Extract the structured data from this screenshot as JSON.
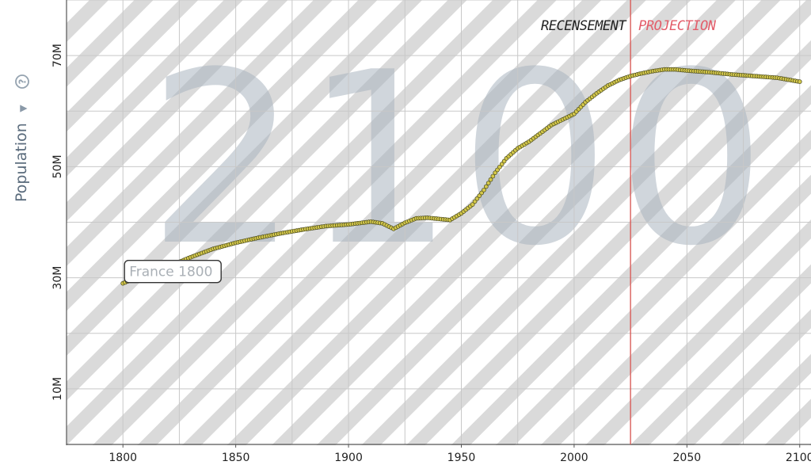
{
  "chart_data": {
    "type": "scatter",
    "background_year": "2100",
    "ylabel": "Population",
    "ylabel_arrow": "▼",
    "help_icon": "question-circle-icon",
    "xlim": [
      1775,
      2105
    ],
    "ylim": [
      0,
      80000000
    ],
    "x_ticks": [
      {
        "value": 1800,
        "label": "1800"
      },
      {
        "value": 1850,
        "label": "1850"
      },
      {
        "value": 1900,
        "label": "1900"
      },
      {
        "value": 1950,
        "label": "1950"
      },
      {
        "value": 2000,
        "label": "2000"
      },
      {
        "value": 2050,
        "label": "2050"
      },
      {
        "value": 2100,
        "label": "2100"
      }
    ],
    "y_ticks": [
      {
        "value": 10000000,
        "label": "10M"
      },
      {
        "value": 30000000,
        "label": "30M"
      },
      {
        "value": 50000000,
        "label": "50M"
      },
      {
        "value": 70000000,
        "label": "70M"
      }
    ],
    "divider_year": 2025,
    "census_label": "RECENSEMENT",
    "projection_label": "PROJECTION",
    "tooltip_label": "France 1800",
    "series": [
      {
        "name": "France",
        "color": "#d4c84a",
        "keypoints": [
          [
            1800,
            29000000
          ],
          [
            1810,
            30700000
          ],
          [
            1820,
            32000000
          ],
          [
            1830,
            33700000
          ],
          [
            1840,
            35200000
          ],
          [
            1850,
            36300000
          ],
          [
            1860,
            37200000
          ],
          [
            1870,
            38000000
          ],
          [
            1880,
            38700000
          ],
          [
            1890,
            39300000
          ],
          [
            1900,
            39600000
          ],
          [
            1910,
            40100000
          ],
          [
            1915,
            39800000
          ],
          [
            1920,
            38800000
          ],
          [
            1925,
            39900000
          ],
          [
            1930,
            40700000
          ],
          [
            1935,
            40800000
          ],
          [
            1940,
            40600000
          ],
          [
            1945,
            40400000
          ],
          [
            1950,
            41600000
          ],
          [
            1955,
            43200000
          ],
          [
            1960,
            45800000
          ],
          [
            1965,
            48900000
          ],
          [
            1970,
            51500000
          ],
          [
            1975,
            53300000
          ],
          [
            1980,
            54500000
          ],
          [
            1985,
            56000000
          ],
          [
            1990,
            57500000
          ],
          [
            1995,
            58500000
          ],
          [
            2000,
            59500000
          ],
          [
            2005,
            61600000
          ],
          [
            2010,
            63200000
          ],
          [
            2015,
            64600000
          ],
          [
            2020,
            65600000
          ],
          [
            2025,
            66300000
          ],
          [
            2030,
            66800000
          ],
          [
            2035,
            67200000
          ],
          [
            2040,
            67500000
          ],
          [
            2045,
            67500000
          ],
          [
            2050,
            67300000
          ],
          [
            2060,
            67000000
          ],
          [
            2070,
            66600000
          ],
          [
            2080,
            66300000
          ],
          [
            2090,
            66000000
          ],
          [
            2100,
            65300000
          ]
        ]
      }
    ]
  }
}
